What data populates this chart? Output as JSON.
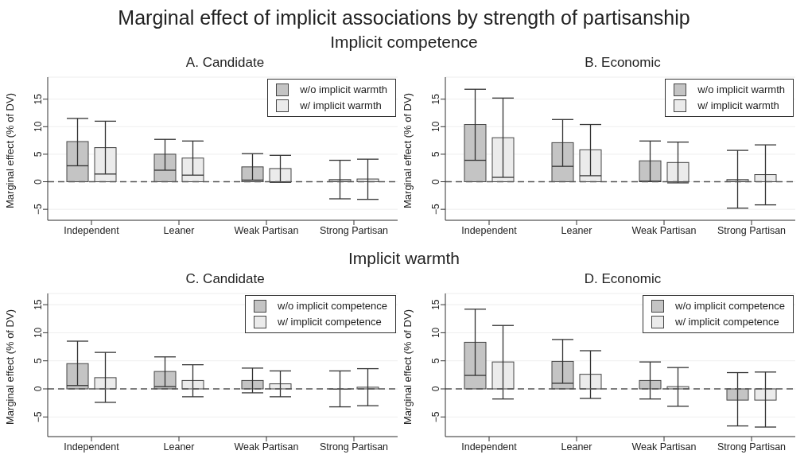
{
  "chart_data": [
    {
      "type": "bar",
      "title": "A. Candidate",
      "annotations": [
        "Marginal effect of implicit associations by strength of partisanship",
        "Implicit competence"
      ],
      "ylabel": "Marginal effect (% of DV)",
      "categories": [
        "Independent",
        "Leaner",
        "Weak Partisan",
        "Strong Partisan"
      ],
      "ylim": [
        -7,
        19
      ],
      "yticks": [
        -5,
        0,
        5,
        10,
        15
      ],
      "grid": "y",
      "legend": "top right",
      "ref_lines": [
        {
          "axis": "y",
          "value": 0,
          "line_style": "dashed",
          "color": "#555555"
        }
      ],
      "series": [
        {
          "name": "w/o implicit warmth",
          "color": "#c4c4c4",
          "values": [
            7.3,
            5.0,
            2.7,
            0.4
          ],
          "errors": [
            [
              2.9,
              11.5
            ],
            [
              2.1,
              7.7
            ],
            [
              0.3,
              5.1
            ],
            [
              -3.1,
              3.9
            ]
          ]
        },
        {
          "name": "w/ implicit warmth",
          "color": "#ebebeb",
          "values": [
            6.2,
            4.3,
            2.4,
            0.5
          ],
          "errors": [
            [
              1.4,
              11.0
            ],
            [
              1.2,
              7.4
            ],
            [
              -0.1,
              4.8
            ],
            [
              -3.2,
              4.1
            ]
          ]
        }
      ]
    },
    {
      "type": "bar",
      "title": "B. Economic",
      "ylabel": "Marginal effect (% of DV)",
      "categories": [
        "Independent",
        "Leaner",
        "Weak Partisan",
        "Strong Partisan"
      ],
      "ylim": [
        -7,
        19
      ],
      "yticks": [
        -5,
        0,
        5,
        10,
        15
      ],
      "grid": "y",
      "legend": "top right",
      "ref_lines": [
        {
          "axis": "y",
          "value": 0,
          "line_style": "dashed",
          "color": "#555555"
        }
      ],
      "series": [
        {
          "name": "w/o implicit warmth",
          "color": "#c4c4c4",
          "values": [
            10.4,
            7.1,
            3.8,
            0.4
          ],
          "errors": [
            [
              3.9,
              16.8
            ],
            [
              2.8,
              11.3
            ],
            [
              0.1,
              7.4
            ],
            [
              -4.8,
              5.7
            ]
          ]
        },
        {
          "name": "w/ implicit warmth",
          "color": "#ebebeb",
          "values": [
            8.0,
            5.8,
            3.5,
            1.3
          ],
          "errors": [
            [
              0.8,
              15.2
            ],
            [
              1.1,
              10.4
            ],
            [
              -0.2,
              7.2
            ],
            [
              -4.2,
              6.7
            ]
          ]
        }
      ]
    },
    {
      "type": "bar",
      "title": "C. Candidate",
      "annotations": [
        "Implicit warmth"
      ],
      "ylabel": "Marginal effect (% of DV)",
      "categories": [
        "Independent",
        "Leaner",
        "Weak Partisan",
        "Strong Partisan"
      ],
      "ylim": [
        -8.5,
        17
      ],
      "yticks": [
        -5,
        0,
        5,
        10,
        15
      ],
      "grid": "y",
      "legend": "top right",
      "ref_lines": [
        {
          "axis": "y",
          "value": 0,
          "line_style": "dashed",
          "color": "#555555"
        }
      ],
      "series": [
        {
          "name": "w/o implicit competence",
          "color": "#c4c4c4",
          "values": [
            4.5,
            3.1,
            1.5,
            0.0
          ],
          "errors": [
            [
              0.6,
              8.5
            ],
            [
              0.4,
              5.7
            ],
            [
              -0.7,
              3.7
            ],
            [
              -3.2,
              3.2
            ]
          ]
        },
        {
          "name": "w/ implicit competence",
          "color": "#ebebeb",
          "values": [
            2.0,
            1.5,
            0.9,
            0.3
          ],
          "errors": [
            [
              -2.4,
              6.5
            ],
            [
              -1.4,
              4.3
            ],
            [
              -1.4,
              3.2
            ],
            [
              -3.0,
              3.6
            ]
          ]
        }
      ]
    },
    {
      "type": "bar",
      "title": "D. Economic",
      "ylabel": "Marginal effect (% of DV)",
      "categories": [
        "Independent",
        "Leaner",
        "Weak Partisan",
        "Strong Partisan"
      ],
      "ylim": [
        -8.5,
        17
      ],
      "yticks": [
        -5,
        0,
        5,
        10,
        15
      ],
      "grid": "y",
      "legend": "top right",
      "ref_lines": [
        {
          "axis": "y",
          "value": 0,
          "line_style": "dashed",
          "color": "#555555"
        }
      ],
      "series": [
        {
          "name": "w/o implicit competence",
          "color": "#c4c4c4",
          "values": [
            8.3,
            4.9,
            1.5,
            -2.0
          ],
          "errors": [
            [
              2.4,
              14.2
            ],
            [
              1.0,
              8.8
            ],
            [
              -1.8,
              4.8
            ],
            [
              -6.6,
              2.9
            ]
          ]
        },
        {
          "name": "w/ implicit competence",
          "color": "#ebebeb",
          "values": [
            4.8,
            2.6,
            0.4,
            -2.0
          ],
          "errors": [
            [
              -1.8,
              11.3
            ],
            [
              -1.7,
              6.8
            ],
            [
              -3.1,
              3.8
            ],
            [
              -6.8,
              3.0
            ]
          ]
        }
      ]
    }
  ]
}
